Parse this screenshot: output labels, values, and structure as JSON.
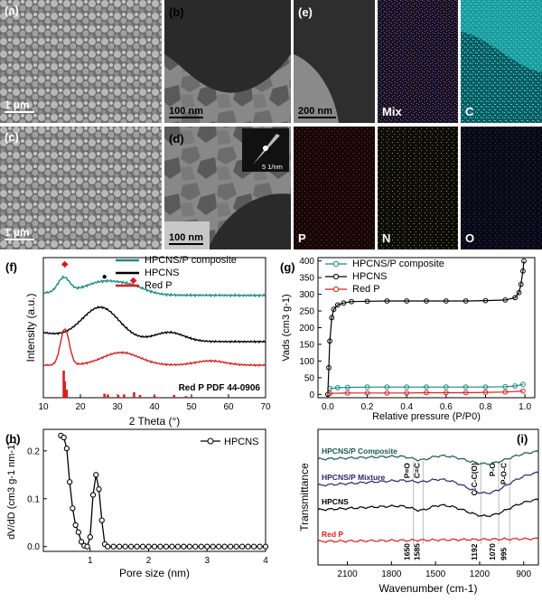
{
  "panels": {
    "a": "(a)",
    "b": "(b)",
    "c": "(c)",
    "d": "(d)",
    "e": "(e)",
    "f": "(f)",
    "g": "(g)",
    "h": "(h)",
    "i": "(i)"
  },
  "scale_bars": {
    "a": "1 µm",
    "b": "100 nm",
    "c": "1 µm",
    "d": "100 nm",
    "e": "200 nm",
    "saed": "5 1/nm"
  },
  "eds_maps": [
    {
      "label": "Mix",
      "color": "#8a5bd1"
    },
    {
      "label": "C",
      "color": "#22c3c3"
    },
    {
      "label": "P",
      "color": "#c02020"
    },
    {
      "label": "N",
      "color": "#b8c020"
    },
    {
      "label": "O",
      "color": "#3a3aa8"
    }
  ],
  "chart_data": [
    {
      "id": "f",
      "type": "line",
      "xlabel": "2 Theta (°)",
      "ylabel": "Intensity (a.u.)",
      "xlim": [
        10,
        70
      ],
      "xticks": [
        "10",
        "20",
        "30",
        "40",
        "50",
        "60",
        "70"
      ],
      "legend": [
        "HPCNS/P composite",
        "HPCNS",
        "Red P"
      ],
      "colors": [
        "#1a8a80",
        "#000000",
        "#d62020"
      ],
      "markers": [
        "◆",
        "●",
        "◆"
      ],
      "annotation": "Red P PDF 44-0906",
      "reference_peaks": [
        15.5,
        15.8,
        16.3,
        26.5,
        27.4,
        30.2,
        31.8,
        34.5,
        36.1,
        40.0,
        45.3,
        48.5
      ],
      "reference_heights": [
        1.0,
        0.6,
        0.3,
        0.15,
        0.12,
        0.1,
        0.12,
        0.2,
        0.1,
        0.08,
        0.1,
        0.06
      ]
    },
    {
      "id": "g",
      "type": "line",
      "xlabel": "Relative pressure (P/P0)",
      "ylabel": "Vads (cm3 g-1)",
      "xlim": [
        0.0,
        1.0
      ],
      "ylim": [
        0,
        400
      ],
      "xticks": [
        "0.0",
        "0.2",
        "0.4",
        "0.6",
        "0.8",
        "1.0"
      ],
      "yticks": [
        "0",
        "50",
        "100",
        "150",
        "200",
        "250",
        "300",
        "350",
        "400"
      ],
      "legend": [
        "HPCNS/P composite",
        "HPCNS",
        "Red P"
      ],
      "colors": [
        "#1a8a80",
        "#000000",
        "#d62020"
      ],
      "series": [
        {
          "name": "HPCNS/P composite",
          "x": [
            0.01,
            0.05,
            0.1,
            0.2,
            0.3,
            0.4,
            0.5,
            0.6,
            0.7,
            0.8,
            0.9,
            0.95,
            0.99
          ],
          "y": [
            18,
            20,
            21,
            22,
            22,
            22,
            22,
            22,
            22,
            22,
            23,
            25,
            30
          ]
        },
        {
          "name": "HPCNS",
          "x": [
            0.0,
            0.005,
            0.01,
            0.02,
            0.03,
            0.05,
            0.08,
            0.12,
            0.2,
            0.3,
            0.4,
            0.5,
            0.6,
            0.7,
            0.8,
            0.9,
            0.95,
            0.97,
            0.98,
            0.99,
            0.995
          ],
          "y": [
            0,
            80,
            160,
            230,
            255,
            268,
            274,
            278,
            279,
            280,
            280,
            280,
            280,
            280,
            281,
            283,
            290,
            305,
            330,
            370,
            400
          ]
        },
        {
          "name": "Red P",
          "x": [
            0.01,
            0.1,
            0.2,
            0.3,
            0.4,
            0.5,
            0.6,
            0.7,
            0.8,
            0.9,
            0.99
          ],
          "y": [
            3,
            4,
            4,
            4,
            4,
            5,
            5,
            5,
            6,
            7,
            10
          ]
        }
      ]
    },
    {
      "id": "h",
      "type": "line",
      "xlabel": "Pore size (nm)",
      "ylabel": "dV/dD (cm3 g-1 nm-1)",
      "xlim": [
        0.2,
        4.0
      ],
      "ylim": [
        -0.01,
        0.245
      ],
      "xticks": [
        "1",
        "2",
        "3",
        "4"
      ],
      "yticks": [
        "0.0",
        "0.1",
        "0.2"
      ],
      "legend": [
        "HPCNS"
      ],
      "series": [
        {
          "name": "HPCNS",
          "x": [
            0.5,
            0.55,
            0.6,
            0.65,
            0.7,
            0.75,
            0.8,
            0.85,
            0.9,
            0.95,
            1.0,
            1.05,
            1.1,
            1.15,
            1.2,
            1.25,
            1.3,
            1.4,
            1.5,
            1.6,
            1.7,
            1.8,
            1.9,
            2.0,
            2.1,
            2.2,
            2.3,
            2.4,
            2.5,
            2.6,
            2.7,
            2.8,
            2.9,
            3.0,
            3.1,
            3.2,
            3.3,
            3.4,
            3.5,
            3.6,
            3.7,
            3.8,
            3.9,
            4.0
          ],
          "y": [
            0.232,
            0.228,
            0.205,
            0.135,
            0.08,
            0.045,
            0.03,
            0.01,
            0.002,
            0.0,
            0.02,
            0.108,
            0.15,
            0.12,
            0.055,
            0.005,
            0.0,
            0.0,
            0.0,
            0.0,
            0.0,
            0.0,
            0.0,
            0.0,
            0.0,
            0.0,
            0.0,
            0.0,
            0.0,
            0.0,
            0.0,
            0.0,
            0.0,
            0.0,
            0.0,
            0.0,
            0.0,
            0.0,
            0.0,
            0.0,
            0.0,
            0.0,
            0.0,
            0.0
          ]
        }
      ]
    },
    {
      "id": "i",
      "type": "line",
      "xlabel": "Wavenumber (cm-1)",
      "ylabel": "Transmittance",
      "xlim": [
        2300,
        800
      ],
      "xticks": [
        "2100",
        "1800",
        "1500",
        "1200",
        "900"
      ],
      "series_labels": [
        "HPCNS/P Composite",
        "HPCNS/P Mixture",
        "HPCNS",
        "Red P"
      ],
      "colors": [
        "#1a5a50",
        "#2a2a70",
        "#000000",
        "#d62020"
      ],
      "band_labels": [
        "P=O",
        "C=C",
        "C-C-C(O)",
        "P-O",
        "P-O-C"
      ],
      "band_positions": [
        1650,
        1585,
        1192,
        1070,
        995
      ],
      "band_values": [
        "1650",
        "1585",
        "1192",
        "1070",
        "995"
      ]
    }
  ]
}
